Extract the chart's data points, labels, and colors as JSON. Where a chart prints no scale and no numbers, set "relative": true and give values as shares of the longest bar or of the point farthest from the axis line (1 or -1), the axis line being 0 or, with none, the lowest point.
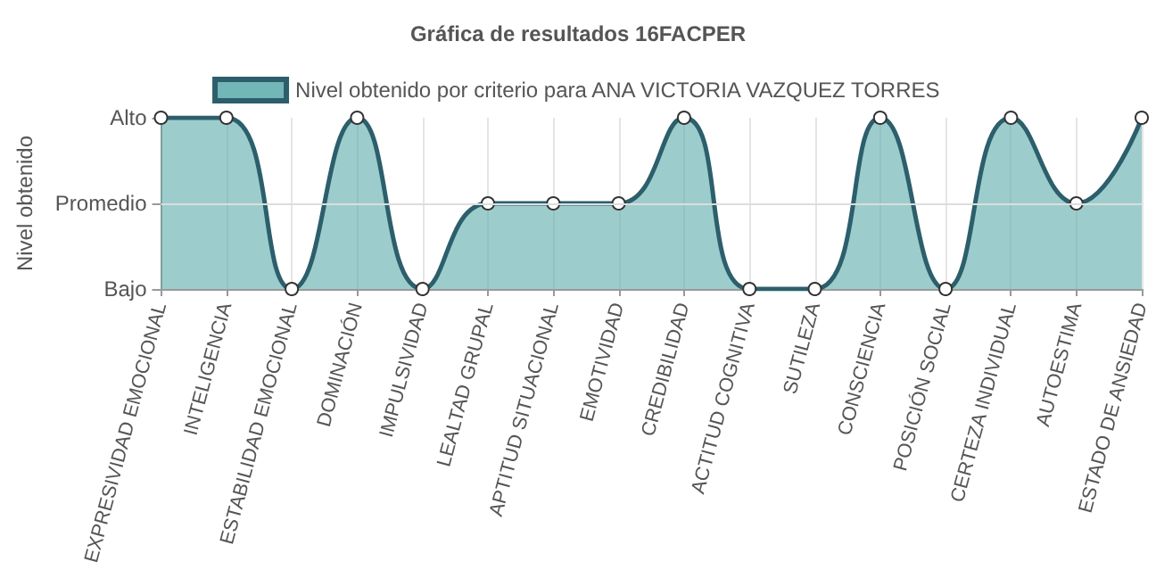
{
  "chart_data": {
    "type": "area",
    "title": "Gráfica de resultados 16FACPER",
    "ylabel": "Nivel obtenido",
    "categories": [
      "EXPRESIVIDAD EMOCIONAL",
      "INTELIGENCIA",
      "ESTABILIDAD EMOCIONAL",
      "DOMINACIÓN",
      "IMPULSIVIDAD",
      "LEALTAD GRUPAL",
      "APTITUD SITUACIONAL",
      "EMOTIVIDAD",
      "CREDIBILIDAD",
      "ACTITUD COGNITIVA",
      "SUTILEZA",
      "CONSCIENCIA",
      "POSICIÓN SOCIAL",
      "CERTEZA INDIVIDUAL",
      "AUTOESTIMA",
      "ESTADO DE ANSIEDAD"
    ],
    "series": [
      {
        "name": "Nivel obtenido por criterio para ANA VICTORIA VAZQUEZ TORRES",
        "color": "#2c5f6b",
        "values": [
          1,
          1,
          0,
          1,
          0,
          0.5,
          0.5,
          0.5,
          1,
          0,
          0,
          1,
          0,
          1,
          0.5,
          1
        ]
      }
    ],
    "relative": true,
    "y_categories": [
      "Alto",
      "Promedio",
      "Bajo"
    ],
    "grid": "x",
    "ref_lines": [
      {
        "axis": "y",
        "value": 0.5,
        "color": "#dddddd"
      }
    ],
    "legend": "top",
    "marker": "circle",
    "line_style": "solid"
  }
}
